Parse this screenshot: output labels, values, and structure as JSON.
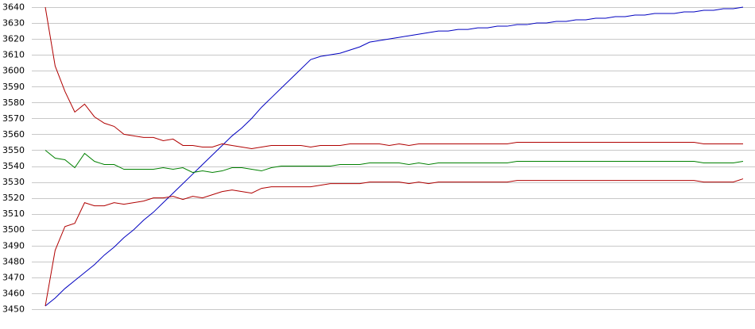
{
  "chart_data": {
    "type": "line",
    "ylim": [
      3450,
      3640
    ],
    "yticks": [
      3450,
      3460,
      3470,
      3480,
      3490,
      3500,
      3510,
      3520,
      3530,
      3540,
      3550,
      3560,
      3570,
      3580,
      3590,
      3600,
      3610,
      3620,
      3630,
      3640
    ],
    "grid": true,
    "series": [
      {
        "color": "#0000c0",
        "values": [
          3452,
          3457,
          3463,
          3468,
          3473,
          3478,
          3484,
          3489,
          3495,
          3500,
          3506,
          3511,
          3517,
          3523,
          3529,
          3535,
          3541,
          3547,
          3553,
          3559,
          3564,
          3570,
          3577,
          3583,
          3589,
          3595,
          3601,
          3607,
          3609,
          3610,
          3611,
          3613,
          3615,
          3618,
          3619,
          3620,
          3621,
          3622,
          3623,
          3624,
          3625,
          3625,
          3626,
          3626,
          3627,
          3627,
          3628,
          3628,
          3629,
          3629,
          3630,
          3630,
          3631,
          3631,
          3632,
          3632,
          3633,
          3633,
          3634,
          3634,
          3635,
          3635,
          3636,
          3636,
          3636,
          3637,
          3637,
          3638,
          3638,
          3639,
          3639,
          3640
        ]
      },
      {
        "color": "#b00000",
        "values": [
          3640,
          3603,
          3587,
          3574,
          3579,
          3571,
          3567,
          3565,
          3560,
          3559,
          3558,
          3558,
          3556,
          3557,
          3553,
          3553,
          3552,
          3552,
          3554,
          3553,
          3552,
          3551,
          3552,
          3553,
          3553,
          3553,
          3553,
          3552,
          3553,
          3553,
          3553,
          3554,
          3554,
          3554,
          3554,
          3553,
          3554,
          3553,
          3554,
          3554,
          3554,
          3554,
          3554,
          3554,
          3554,
          3554,
          3554,
          3554,
          3555,
          3555,
          3555,
          3555,
          3555,
          3555,
          3555,
          3555,
          3555,
          3555,
          3555,
          3555,
          3555,
          3555,
          3555,
          3555,
          3555,
          3555,
          3555,
          3554,
          3554,
          3554,
          3554,
          3554
        ]
      },
      {
        "color": "#008000",
        "values": [
          3550,
          3545,
          3544,
          3539,
          3548,
          3543,
          3541,
          3541,
          3538,
          3538,
          3538,
          3538,
          3539,
          3538,
          3539,
          3536,
          3537,
          3536,
          3537,
          3539,
          3539,
          3538,
          3537,
          3539,
          3540,
          3540,
          3540,
          3540,
          3540,
          3540,
          3541,
          3541,
          3541,
          3542,
          3542,
          3542,
          3542,
          3541,
          3542,
          3541,
          3542,
          3542,
          3542,
          3542,
          3542,
          3542,
          3542,
          3542,
          3543,
          3543,
          3543,
          3543,
          3543,
          3543,
          3543,
          3543,
          3543,
          3543,
          3543,
          3543,
          3543,
          3543,
          3543,
          3543,
          3543,
          3543,
          3543,
          3542,
          3542,
          3542,
          3542,
          3543
        ]
      },
      {
        "color": "#b00000",
        "values": [
          3452,
          3487,
          3502,
          3504,
          3517,
          3515,
          3515,
          3517,
          3516,
          3517,
          3518,
          3520,
          3520,
          3521,
          3519,
          3521,
          3520,
          3522,
          3524,
          3525,
          3524,
          3523,
          3526,
          3527,
          3527,
          3527,
          3527,
          3527,
          3528,
          3529,
          3529,
          3529,
          3529,
          3530,
          3530,
          3530,
          3530,
          3529,
          3530,
          3529,
          3530,
          3530,
          3530,
          3530,
          3530,
          3530,
          3530,
          3530,
          3531,
          3531,
          3531,
          3531,
          3531,
          3531,
          3531,
          3531,
          3531,
          3531,
          3531,
          3531,
          3531,
          3531,
          3531,
          3531,
          3531,
          3531,
          3531,
          3530,
          3530,
          3530,
          3530,
          3532
        ]
      }
    ]
  }
}
